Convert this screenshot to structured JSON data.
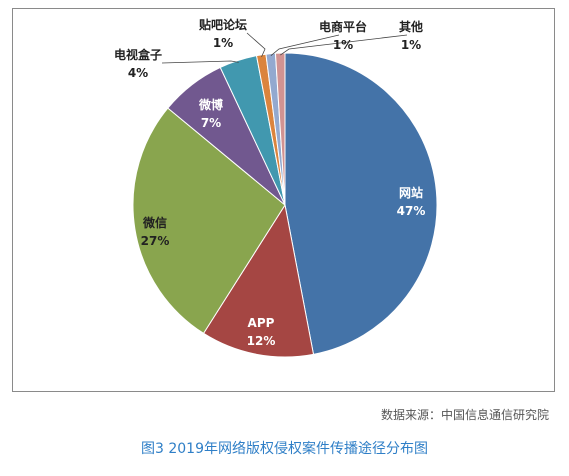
{
  "chart_data": {
    "type": "pie",
    "title": "",
    "slices": [
      {
        "label": "网站",
        "percent_label": "47%",
        "value": 47,
        "color": "#4473a8"
      },
      {
        "label": "APP",
        "percent_label": "12%",
        "value": 12,
        "color": "#a54643"
      },
      {
        "label": "微信",
        "percent_label": "27%",
        "value": 27,
        "color": "#89a54e"
      },
      {
        "label": "微博",
        "percent_label": "7%",
        "value": 7,
        "color": "#71588f"
      },
      {
        "label": "电视盒子",
        "percent_label": "4%",
        "value": 4,
        "color": "#4198af"
      },
      {
        "label": "贴吧论坛",
        "percent_label": "1%",
        "value": 1,
        "color": "#db843d"
      },
      {
        "label": "电商平台",
        "percent_label": "1%",
        "value": 1,
        "color": "#93a9cf"
      },
      {
        "label": "其他",
        "percent_label": "1%",
        "value": 1,
        "color": "#d19392"
      }
    ]
  },
  "source": "数据来源：中国信息通信研究院",
  "caption": "图3 2019年网络版权侵权案件传播途径分布图"
}
